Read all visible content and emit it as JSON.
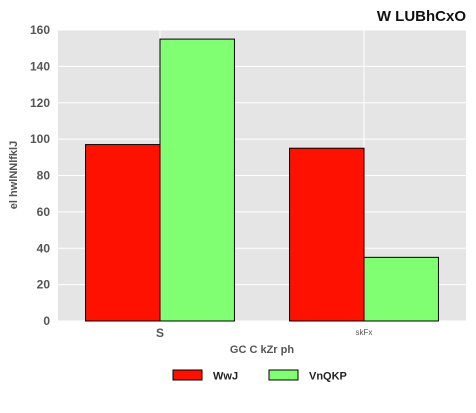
{
  "chart_data": {
    "type": "bar",
    "title": "W LUBhCxO",
    "xlabel": "GC C kZr ph",
    "ylabel": "el hwlNNlfklJ",
    "categories": [
      "S",
      "skFx"
    ],
    "category_label_emphasis": [
      "bold",
      "small"
    ],
    "series": [
      {
        "name": "WwJ",
        "values": [
          97,
          95
        ],
        "color": "#ff1100"
      },
      {
        "name": "VnQKP",
        "values": [
          155,
          35
        ],
        "color": "#80ff72"
      }
    ],
    "ylim": [
      0,
      160
    ],
    "yticks": [
      0,
      20,
      40,
      60,
      80,
      100,
      120,
      140,
      160
    ],
    "grid": true,
    "legend_position": "bottom-center",
    "background_color": "#e5e5e5",
    "grid_color": "#ffffff",
    "bar_edge_color": "#000000"
  }
}
